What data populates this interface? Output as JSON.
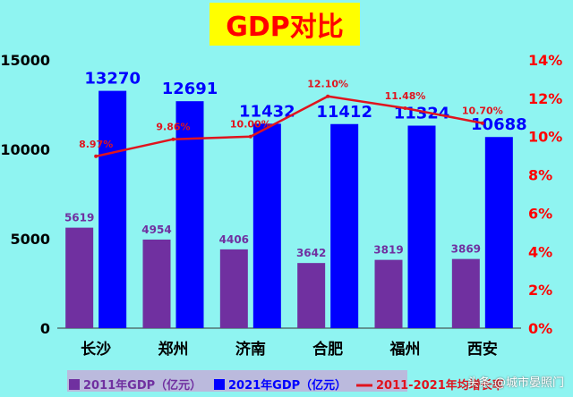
{
  "title": "GDP对比",
  "watermark": "头条 @城市晏照门",
  "colors": {
    "background": "#8ff4f1",
    "title_bg": "#ffff00",
    "title_text": "#ff0000",
    "bar_2011": "#7030a0",
    "bar_2021": "#0000ff",
    "line": "#e0141e",
    "left_axis": "#000000",
    "right_axis": "#ff0000",
    "legend_bg": "#c9a7d6"
  },
  "chart_data": {
    "type": "bar",
    "title": "GDP对比",
    "categories": [
      "长沙",
      "郑州",
      "济南",
      "合肥",
      "福州",
      "西安"
    ],
    "series": [
      {
        "name": "2011年GDP（亿元）",
        "type": "bar",
        "axis": "left",
        "values": [
          5619,
          4954,
          4406,
          3642,
          3819,
          3869
        ]
      },
      {
        "name": "2021年GDP（亿元）",
        "type": "bar",
        "axis": "left",
        "values": [
          13270,
          12691,
          11432,
          11412,
          11324,
          10688
        ]
      },
      {
        "name": "2011-2021年均增长率",
        "type": "line",
        "axis": "right",
        "values": [
          8.97,
          9.86,
          10.0,
          12.1,
          11.48,
          10.7
        ],
        "labels": [
          "8.97%",
          "9.86%",
          "10.00%",
          "12.10%",
          "11.48%",
          "10.70%"
        ]
      }
    ],
    "y_left": {
      "range": [
        0,
        15000
      ],
      "ticks": [
        "0",
        "5000",
        "10000",
        "15000"
      ]
    },
    "y_right": {
      "range": [
        0,
        14
      ],
      "ticks": [
        "0%",
        "2%",
        "4%",
        "6%",
        "8%",
        "10%",
        "12%",
        "14%"
      ]
    },
    "grid": false,
    "legend_position": "bottom"
  }
}
